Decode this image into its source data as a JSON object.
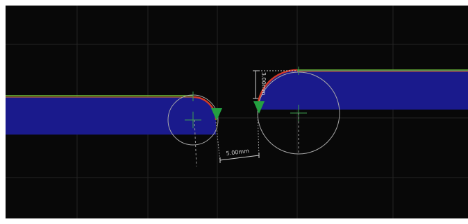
{
  "viewport": {
    "background": "#080808",
    "grid_color": "#242424",
    "strip_color": "#1a1a8c",
    "edge_green": "#6fbf3a",
    "edge_orange": "#e0782a",
    "arc_red": "#d23a28",
    "marker_green": "#24a040"
  },
  "dimensions": {
    "horizontal_label": "5.00mm",
    "vertical_label": "3.00mm"
  },
  "icons": [
    "weld-point-marker-icon",
    "weld-point-marker-icon"
  ]
}
